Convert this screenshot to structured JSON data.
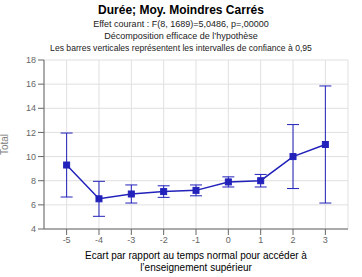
{
  "chart_data": {
    "type": "line",
    "title": "Durée; Moy. Moindres Carrés",
    "subtitle": [
      "Effet courant : F(8, 1689)=5,0486, p=,00000",
      "Décomposition efficace de l’hypothèse",
      "Les barres verticales représentent les intervalles de confiance à 0,95"
    ],
    "xlabel": "Ecart par rapport au temps normal pour accéder à\nl’enseignement supérieur",
    "ylabel": "Total",
    "x": [
      -5,
      -4,
      -3,
      -2,
      -1,
      0,
      1,
      2,
      3
    ],
    "values": [
      9.3,
      6.5,
      6.9,
      7.1,
      7.2,
      7.9,
      8.0,
      10.0,
      11.0
    ],
    "yerr_lo": [
      2.65,
      1.45,
      0.75,
      0.48,
      0.45,
      0.42,
      0.52,
      2.65,
      4.85
    ],
    "yerr_hi": [
      2.65,
      1.45,
      0.75,
      0.48,
      0.45,
      0.42,
      0.52,
      2.65,
      4.85
    ],
    "xlim": [
      -5.7,
      3.7
    ],
    "xticks": [
      -5,
      -4,
      -3,
      -2,
      -1,
      0,
      1,
      2,
      3
    ],
    "ylim": [
      4,
      18
    ],
    "yticks": [
      4,
      6,
      8,
      10,
      12,
      14,
      16,
      18
    ],
    "color": "#2222BB",
    "marker": "square",
    "line_style": "solid",
    "grid": true
  }
}
